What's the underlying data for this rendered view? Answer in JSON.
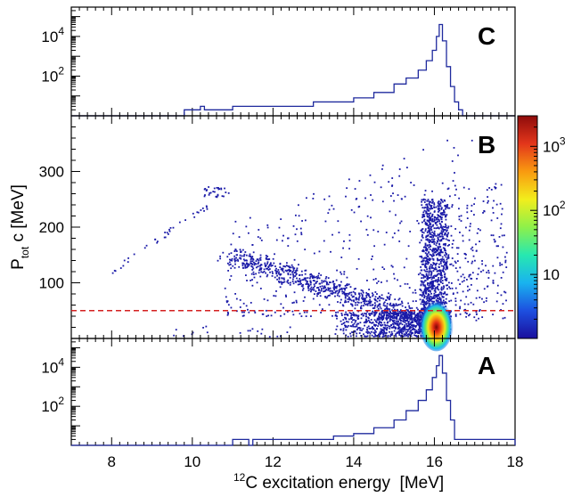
{
  "chart_data": [
    {
      "type": "line",
      "panel_label": "C",
      "x_range": [
        7,
        18
      ],
      "yscale": "log",
      "ylim": [
        1,
        300000
      ],
      "yticks": [
        {
          "value": 100,
          "base": "10",
          "exp": "2"
        },
        {
          "value": 10000,
          "base": "10",
          "exp": "4"
        }
      ],
      "line_color": "#1f2a9e",
      "series": [
        {
          "x": [
            7.0,
            9.7,
            9.8,
            10.2,
            10.3,
            11.0,
            12.0,
            13.0,
            14.0,
            14.5,
            15.0,
            15.3,
            15.6,
            15.8,
            15.95,
            16.05,
            16.12,
            16.2,
            16.3,
            16.4,
            16.5,
            16.6,
            16.7,
            18.0
          ],
          "y": [
            1,
            1,
            2,
            3,
            2,
            3,
            3,
            5,
            8,
            15,
            40,
            80,
            200,
            600,
            2000,
            10000,
            40000,
            6000,
            300,
            30,
            5,
            2,
            1,
            1
          ]
        }
      ]
    },
    {
      "type": "heatmap",
      "panel_label": "B",
      "xlim": [
        7,
        18
      ],
      "ylim": [
        0,
        400
      ],
      "xticks": [
        8,
        10,
        12,
        14,
        16,
        18
      ],
      "yticks": [
        100,
        200,
        300
      ],
      "ylabel": "P",
      "ylabel_sub": "tot",
      "ylabel_rest": " c [MeV]",
      "cut_line_y": 50,
      "cut_line_color": "#d42020",
      "marker_color": "#1a1aa8",
      "hotspot": {
        "x": 16.05,
        "y": 25
      },
      "colorbar": {
        "scale": "log",
        "range": [
          1,
          3000
        ],
        "ticks": [
          "10",
          "10",
          "10"
        ],
        "tick_exps": [
          "",
          "2",
          "3"
        ],
        "colors": [
          "#1a0f9c",
          "#1d4fe0",
          "#19b3ef",
          "#27e8b0",
          "#8ef04a",
          "#f2ee1c",
          "#f99a10",
          "#e3361b",
          "#8e0b0b"
        ]
      }
    },
    {
      "type": "line",
      "panel_label": "A",
      "x_range": [
        7,
        18
      ],
      "xticks": [
        8,
        10,
        12,
        14,
        16,
        18
      ],
      "yscale": "log",
      "ylim": [
        1,
        300000
      ],
      "yticks": [
        {
          "value": 100,
          "base": "10",
          "exp": "2"
        },
        {
          "value": 10000,
          "base": "10",
          "exp": "4"
        }
      ],
      "xlabel_sup": "12",
      "xlabel": "C excitation energy  [MeV]",
      "line_color": "#1f2a9e",
      "series": [
        {
          "x": [
            7.0,
            10.9,
            11.0,
            11.4,
            11.5,
            13.0,
            13.5,
            14.0,
            14.5,
            15.0,
            15.3,
            15.6,
            15.8,
            15.95,
            16.05,
            16.12,
            16.2,
            16.3,
            16.4,
            16.5,
            18.0
          ],
          "y": [
            1,
            1,
            2,
            1,
            2,
            2,
            3,
            4,
            8,
            20,
            60,
            200,
            700,
            3000,
            12000,
            40000,
            5000,
            200,
            20,
            2,
            1
          ]
        }
      ]
    }
  ]
}
